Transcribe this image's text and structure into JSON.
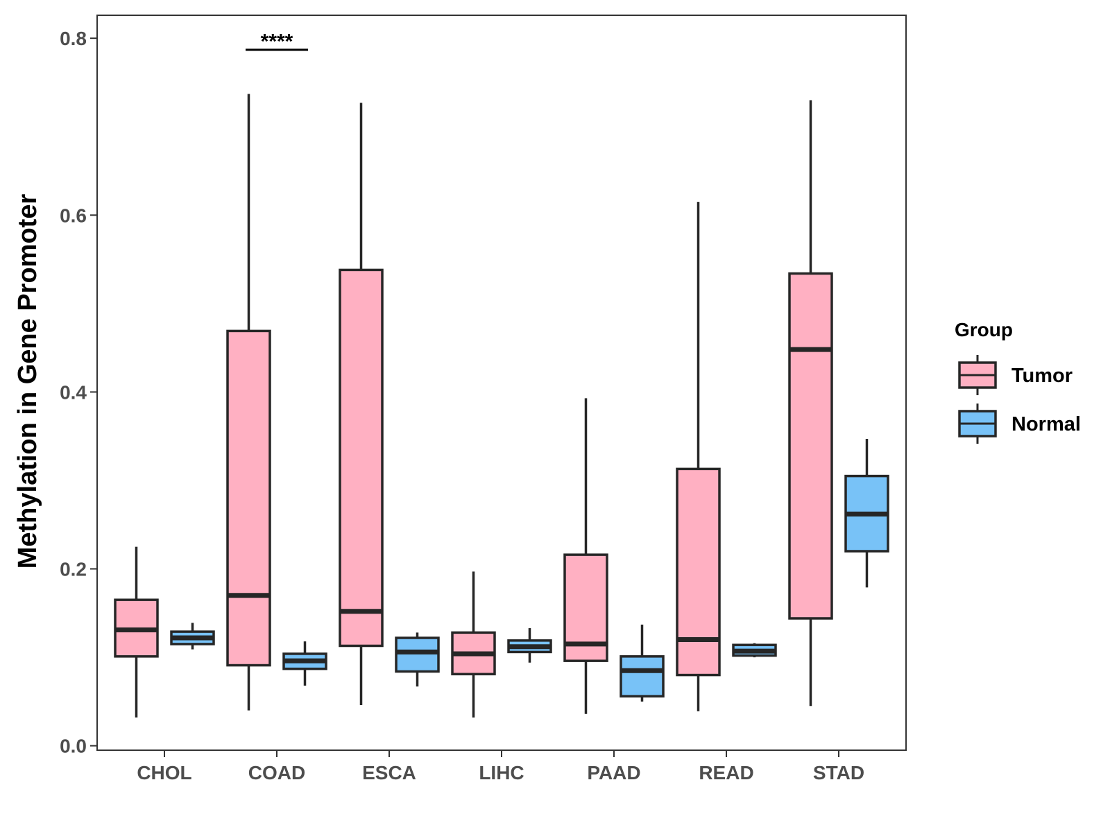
{
  "chart_data": {
    "type": "boxplot",
    "title": "",
    "xlabel": "",
    "ylabel": "Methylation in Gene Promoter",
    "ylim": [
      -0.005,
      0.826
    ],
    "yticks": [
      0.0,
      0.2,
      0.4,
      0.6,
      0.8
    ],
    "ytick_labels": [
      "0.0",
      "0.2",
      "0.4",
      "0.6",
      "0.8"
    ],
    "categories": [
      "CHOL",
      "COAD",
      "ESCA",
      "LIHC",
      "PAAD",
      "READ",
      "STAD"
    ],
    "legend": {
      "title": "Group",
      "position": "right",
      "entries": [
        {
          "name": "Tumor",
          "color": "#FFB0C2"
        },
        {
          "name": "Normal",
          "color": "#78C2F7"
        }
      ]
    },
    "series": [
      {
        "name": "Tumor",
        "color": "#FFB0C2",
        "boxes": [
          {
            "category": "CHOL",
            "min": 0.032,
            "q1": 0.101,
            "median": 0.131,
            "q3": 0.165,
            "max": 0.225
          },
          {
            "category": "COAD",
            "min": 0.04,
            "q1": 0.091,
            "median": 0.17,
            "q3": 0.469,
            "max": 0.737
          },
          {
            "category": "ESCA",
            "min": 0.046,
            "q1": 0.113,
            "median": 0.152,
            "q3": 0.538,
            "max": 0.727
          },
          {
            "category": "LIHC",
            "min": 0.032,
            "q1": 0.081,
            "median": 0.104,
            "q3": 0.128,
            "max": 0.197
          },
          {
            "category": "PAAD",
            "min": 0.036,
            "q1": 0.096,
            "median": 0.115,
            "q3": 0.216,
            "max": 0.393
          },
          {
            "category": "READ",
            "min": 0.039,
            "q1": 0.08,
            "median": 0.12,
            "q3": 0.313,
            "max": 0.615
          },
          {
            "category": "STAD",
            "min": 0.045,
            "q1": 0.144,
            "median": 0.448,
            "q3": 0.534,
            "max": 0.73
          }
        ]
      },
      {
        "name": "Normal",
        "color": "#78C2F7",
        "boxes": [
          {
            "category": "CHOL",
            "min": 0.109,
            "q1": 0.115,
            "median": 0.122,
            "q3": 0.129,
            "max": 0.139
          },
          {
            "category": "COAD",
            "min": 0.068,
            "q1": 0.087,
            "median": 0.096,
            "q3": 0.104,
            "max": 0.118
          },
          {
            "category": "ESCA",
            "min": 0.067,
            "q1": 0.084,
            "median": 0.106,
            "q3": 0.122,
            "max": 0.128
          },
          {
            "category": "LIHC",
            "min": 0.094,
            "q1": 0.106,
            "median": 0.112,
            "q3": 0.119,
            "max": 0.133
          },
          {
            "category": "PAAD",
            "min": 0.05,
            "q1": 0.056,
            "median": 0.085,
            "q3": 0.101,
            "max": 0.137
          },
          {
            "category": "READ",
            "min": 0.1,
            "q1": 0.102,
            "median": 0.107,
            "q3": 0.114,
            "max": 0.116
          },
          {
            "category": "STAD",
            "min": 0.179,
            "q1": 0.22,
            "median": 0.262,
            "q3": 0.305,
            "max": 0.347
          }
        ]
      }
    ],
    "annotations": [
      {
        "category": "COAD",
        "text": "****",
        "y": 0.787
      }
    ]
  }
}
